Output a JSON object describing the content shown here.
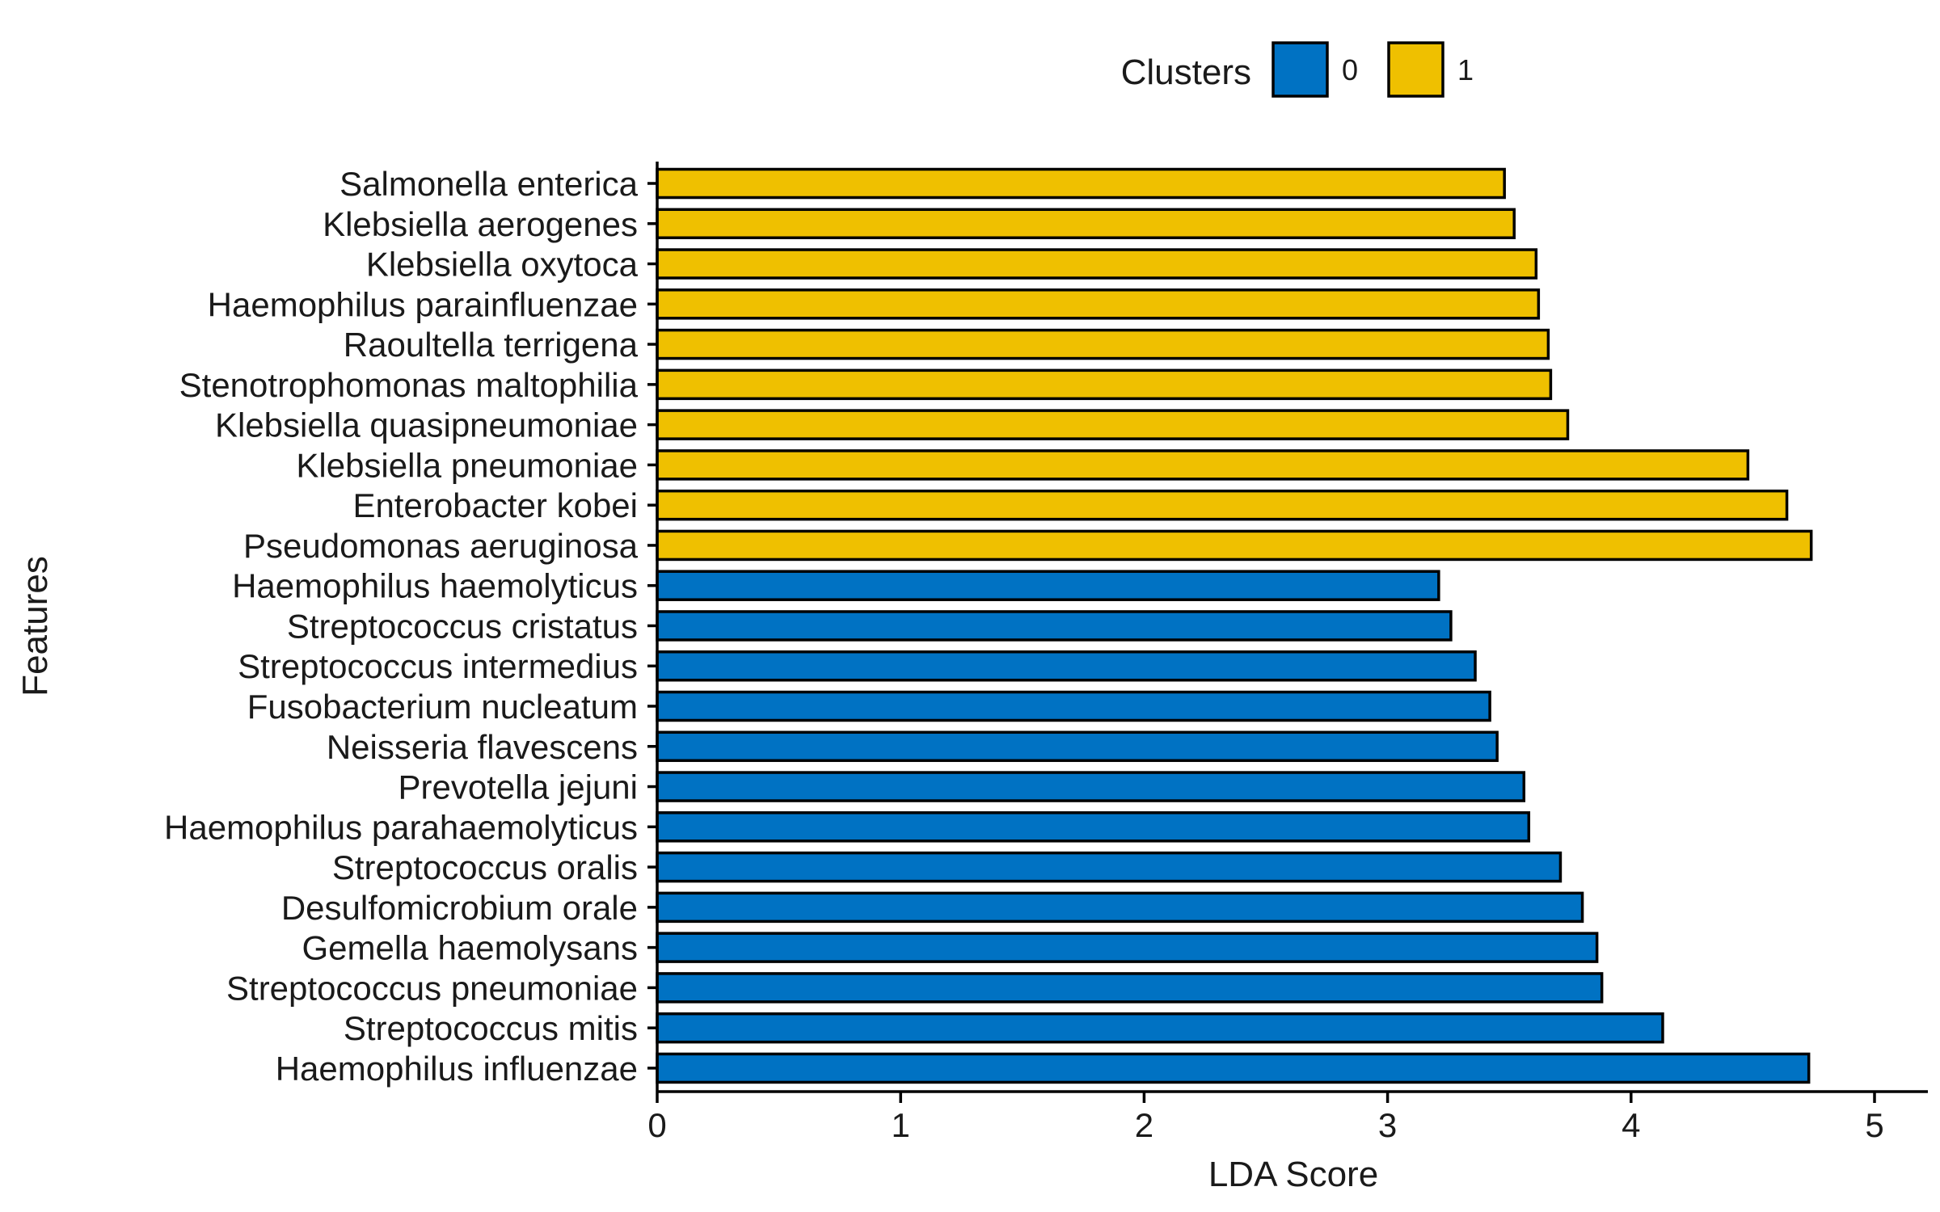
{
  "chart_data": {
    "type": "bar",
    "orientation": "horizontal",
    "xlabel": "LDA Score",
    "ylabel": "Features",
    "xlim": [
      0,
      5.2
    ],
    "xticks": [
      0,
      1,
      2,
      3,
      4,
      5
    ],
    "grid": false,
    "legend": {
      "title": "Clusters",
      "placement": "top",
      "entries": [
        {
          "label": "0",
          "color": "#0072C3"
        },
        {
          "label": "1",
          "color": "#EFC000"
        }
      ]
    },
    "bars": [
      {
        "feature": "Salmonella enterica",
        "value": 3.48,
        "cluster": "1"
      },
      {
        "feature": "Klebsiella aerogenes",
        "value": 3.52,
        "cluster": "1"
      },
      {
        "feature": "Klebsiella oxytoca",
        "value": 3.61,
        "cluster": "1"
      },
      {
        "feature": "Haemophilus parainfluenzae",
        "value": 3.62,
        "cluster": "1"
      },
      {
        "feature": "Raoultella terrigena",
        "value": 3.66,
        "cluster": "1"
      },
      {
        "feature": "Stenotrophomonas maltophilia",
        "value": 3.67,
        "cluster": "1"
      },
      {
        "feature": "Klebsiella quasipneumoniae",
        "value": 3.74,
        "cluster": "1"
      },
      {
        "feature": "Klebsiella pneumoniae",
        "value": 4.48,
        "cluster": "1"
      },
      {
        "feature": "Enterobacter kobei",
        "value": 4.64,
        "cluster": "1"
      },
      {
        "feature": "Pseudomonas aeruginosa",
        "value": 4.74,
        "cluster": "1"
      },
      {
        "feature": "Haemophilus haemolyticus",
        "value": 3.21,
        "cluster": "0"
      },
      {
        "feature": "Streptococcus cristatus",
        "value": 3.26,
        "cluster": "0"
      },
      {
        "feature": "Streptococcus intermedius",
        "value": 3.36,
        "cluster": "0"
      },
      {
        "feature": "Fusobacterium nucleatum",
        "value": 3.42,
        "cluster": "0"
      },
      {
        "feature": "Neisseria flavescens",
        "value": 3.45,
        "cluster": "0"
      },
      {
        "feature": "Prevotella jejuni",
        "value": 3.56,
        "cluster": "0"
      },
      {
        "feature": "Haemophilus parahaemolyticus",
        "value": 3.58,
        "cluster": "0"
      },
      {
        "feature": "Streptococcus oralis",
        "value": 3.71,
        "cluster": "0"
      },
      {
        "feature": "Desulfomicrobium orale",
        "value": 3.8,
        "cluster": "0"
      },
      {
        "feature": "Gemella haemolysans",
        "value": 3.86,
        "cluster": "0"
      },
      {
        "feature": "Streptococcus pneumoniae",
        "value": 3.88,
        "cluster": "0"
      },
      {
        "feature": "Streptococcus mitis",
        "value": 4.13,
        "cluster": "0"
      },
      {
        "feature": "Haemophilus influenzae",
        "value": 4.73,
        "cluster": "0"
      }
    ]
  }
}
